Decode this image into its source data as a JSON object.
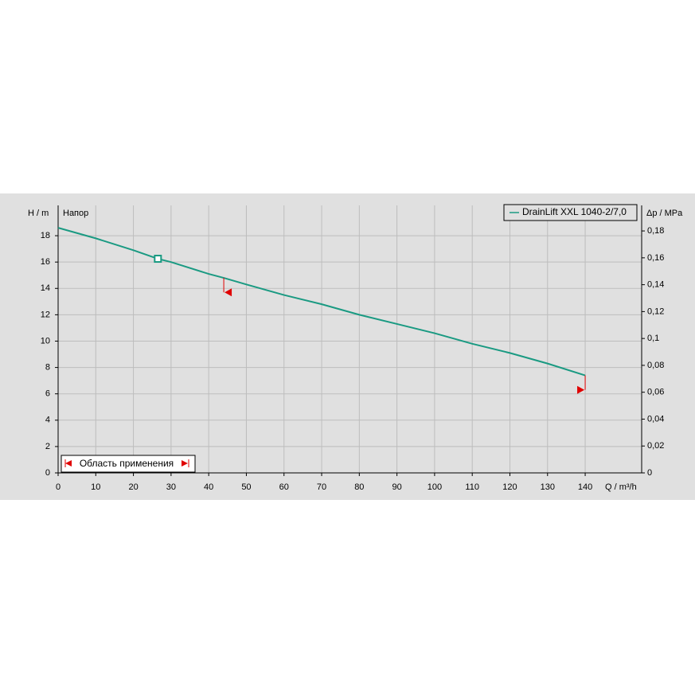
{
  "chart_data": {
    "type": "line",
    "y_label": "H / m",
    "y_title": "Напор",
    "y2_label": "Δp / MPa",
    "x_label": "Q / m³/h",
    "range_label": "Область применения",
    "x": [
      0,
      10,
      20,
      26.5,
      30,
      40,
      44,
      50,
      60,
      70,
      80,
      90,
      100,
      110,
      120,
      130,
      140
    ],
    "series": [
      {
        "name": "DrainLift XXL 1040-2/7,0",
        "color": "#1a9a82",
        "values": [
          18.6,
          17.8,
          16.9,
          16.25,
          16.0,
          15.1,
          14.8,
          14.3,
          13.5,
          12.8,
          12.0,
          11.3,
          10.6,
          9.8,
          9.1,
          8.3,
          7.4
        ]
      }
    ],
    "operating_point": {
      "x": 26.5,
      "y": 16.25
    },
    "range_limits": [
      {
        "x": 44,
        "y": 13.7
      },
      {
        "x": 140,
        "y": 6.3
      }
    ],
    "range_color": "#e00000",
    "xlim": [
      0,
      155
    ],
    "ylim": [
      0,
      20.3
    ],
    "y2lim": [
      0,
      0.199
    ],
    "xticks": [
      0,
      10,
      20,
      30,
      40,
      50,
      60,
      70,
      80,
      90,
      100,
      110,
      120,
      130,
      140
    ],
    "yticks": [
      0,
      2,
      4,
      6,
      8,
      10,
      12,
      14,
      16,
      18
    ],
    "y2ticks": [
      0,
      {
        "value": 0.02,
        "label": "0,02"
      },
      {
        "value": 0.04,
        "label": "0,04"
      },
      {
        "value": 0.06,
        "label": "0,06"
      },
      {
        "value": 0.08,
        "label": "0,08"
      },
      {
        "value": 0.1,
        "label": "0,1"
      },
      {
        "value": 0.12,
        "label": "0,12"
      },
      {
        "value": 0.14,
        "label": "0,14"
      },
      {
        "value": 0.16,
        "label": "0,16"
      },
      {
        "value": 0.18,
        "label": "0,18"
      }
    ],
    "grid": true
  }
}
